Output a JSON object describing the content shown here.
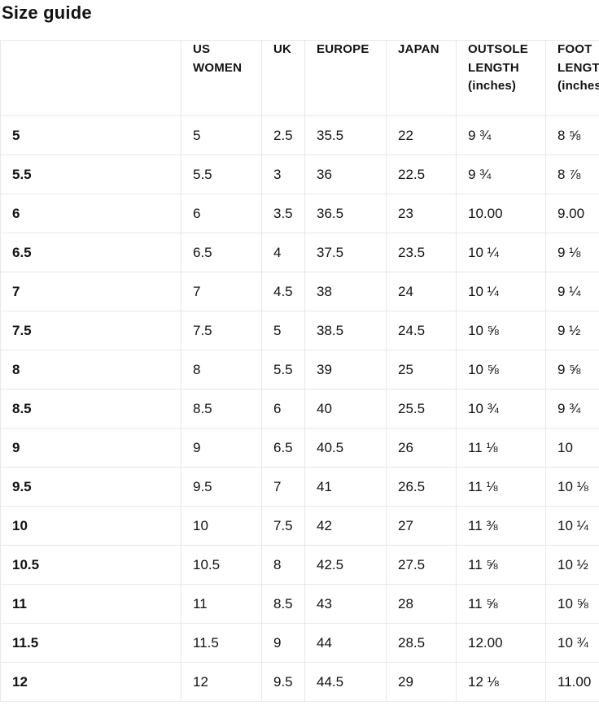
{
  "title": "Size guide",
  "colors": {
    "background": "#ffffff",
    "text": "#121212",
    "table_border": "#e7e7e7"
  },
  "table": {
    "columns": [
      {
        "key": "size",
        "label": ""
      },
      {
        "key": "us-women",
        "label": "US WOMEN"
      },
      {
        "key": "uk",
        "label": "UK"
      },
      {
        "key": "europe",
        "label": "EUROPE"
      },
      {
        "key": "japan",
        "label": "JAPAN"
      },
      {
        "key": "outsole-length",
        "label": "OUTSOLE LENGTH (inches)"
      },
      {
        "key": "foot-length",
        "label": "FOOT LENGTH (inches)"
      }
    ],
    "rows": [
      [
        "5",
        "5",
        "2.5",
        "35.5",
        "22",
        "9 ¾",
        "8 ⅝"
      ],
      [
        "5.5",
        "5.5",
        "3",
        "36",
        "22.5",
        "9 ¾",
        "8 ⅞"
      ],
      [
        "6",
        "6",
        "3.5",
        "36.5",
        "23",
        "10.00",
        "9.00"
      ],
      [
        "6.5",
        "6.5",
        "4",
        "37.5",
        "23.5",
        "10 ¼",
        "9 ⅛"
      ],
      [
        "7",
        "7",
        "4.5",
        "38",
        "24",
        "10 ¼",
        "9 ¼"
      ],
      [
        "7.5",
        "7.5",
        "5",
        "38.5",
        "24.5",
        "10 ⅝",
        "9 ½"
      ],
      [
        "8",
        "8",
        "5.5",
        "39",
        "25",
        "10 ⅝",
        "9 ⅝"
      ],
      [
        "8.5",
        "8.5",
        "6",
        "40",
        "25.5",
        "10 ¾",
        "9 ¾"
      ],
      [
        "9",
        "9",
        "6.5",
        "40.5",
        "26",
        "11 ⅛",
        "10"
      ],
      [
        "9.5",
        "9.5",
        "7",
        "41",
        "26.5",
        "11 ⅛",
        "10 ⅛"
      ],
      [
        "10",
        "10",
        "7.5",
        "42",
        "27",
        "11 ⅜",
        "10 ¼"
      ],
      [
        "10.5",
        "10.5",
        "8",
        "42.5",
        "27.5",
        "11 ⅝",
        "10 ½"
      ],
      [
        "11",
        "11",
        "8.5",
        "43",
        "28",
        "11 ⅝",
        "10 ⅝"
      ],
      [
        "11.5",
        "11.5",
        "9",
        "44",
        "28.5",
        "12.00",
        "10 ¾"
      ],
      [
        "12",
        "12",
        "9.5",
        "44.5",
        "29",
        "12 ⅛",
        "11.00"
      ]
    ]
  }
}
